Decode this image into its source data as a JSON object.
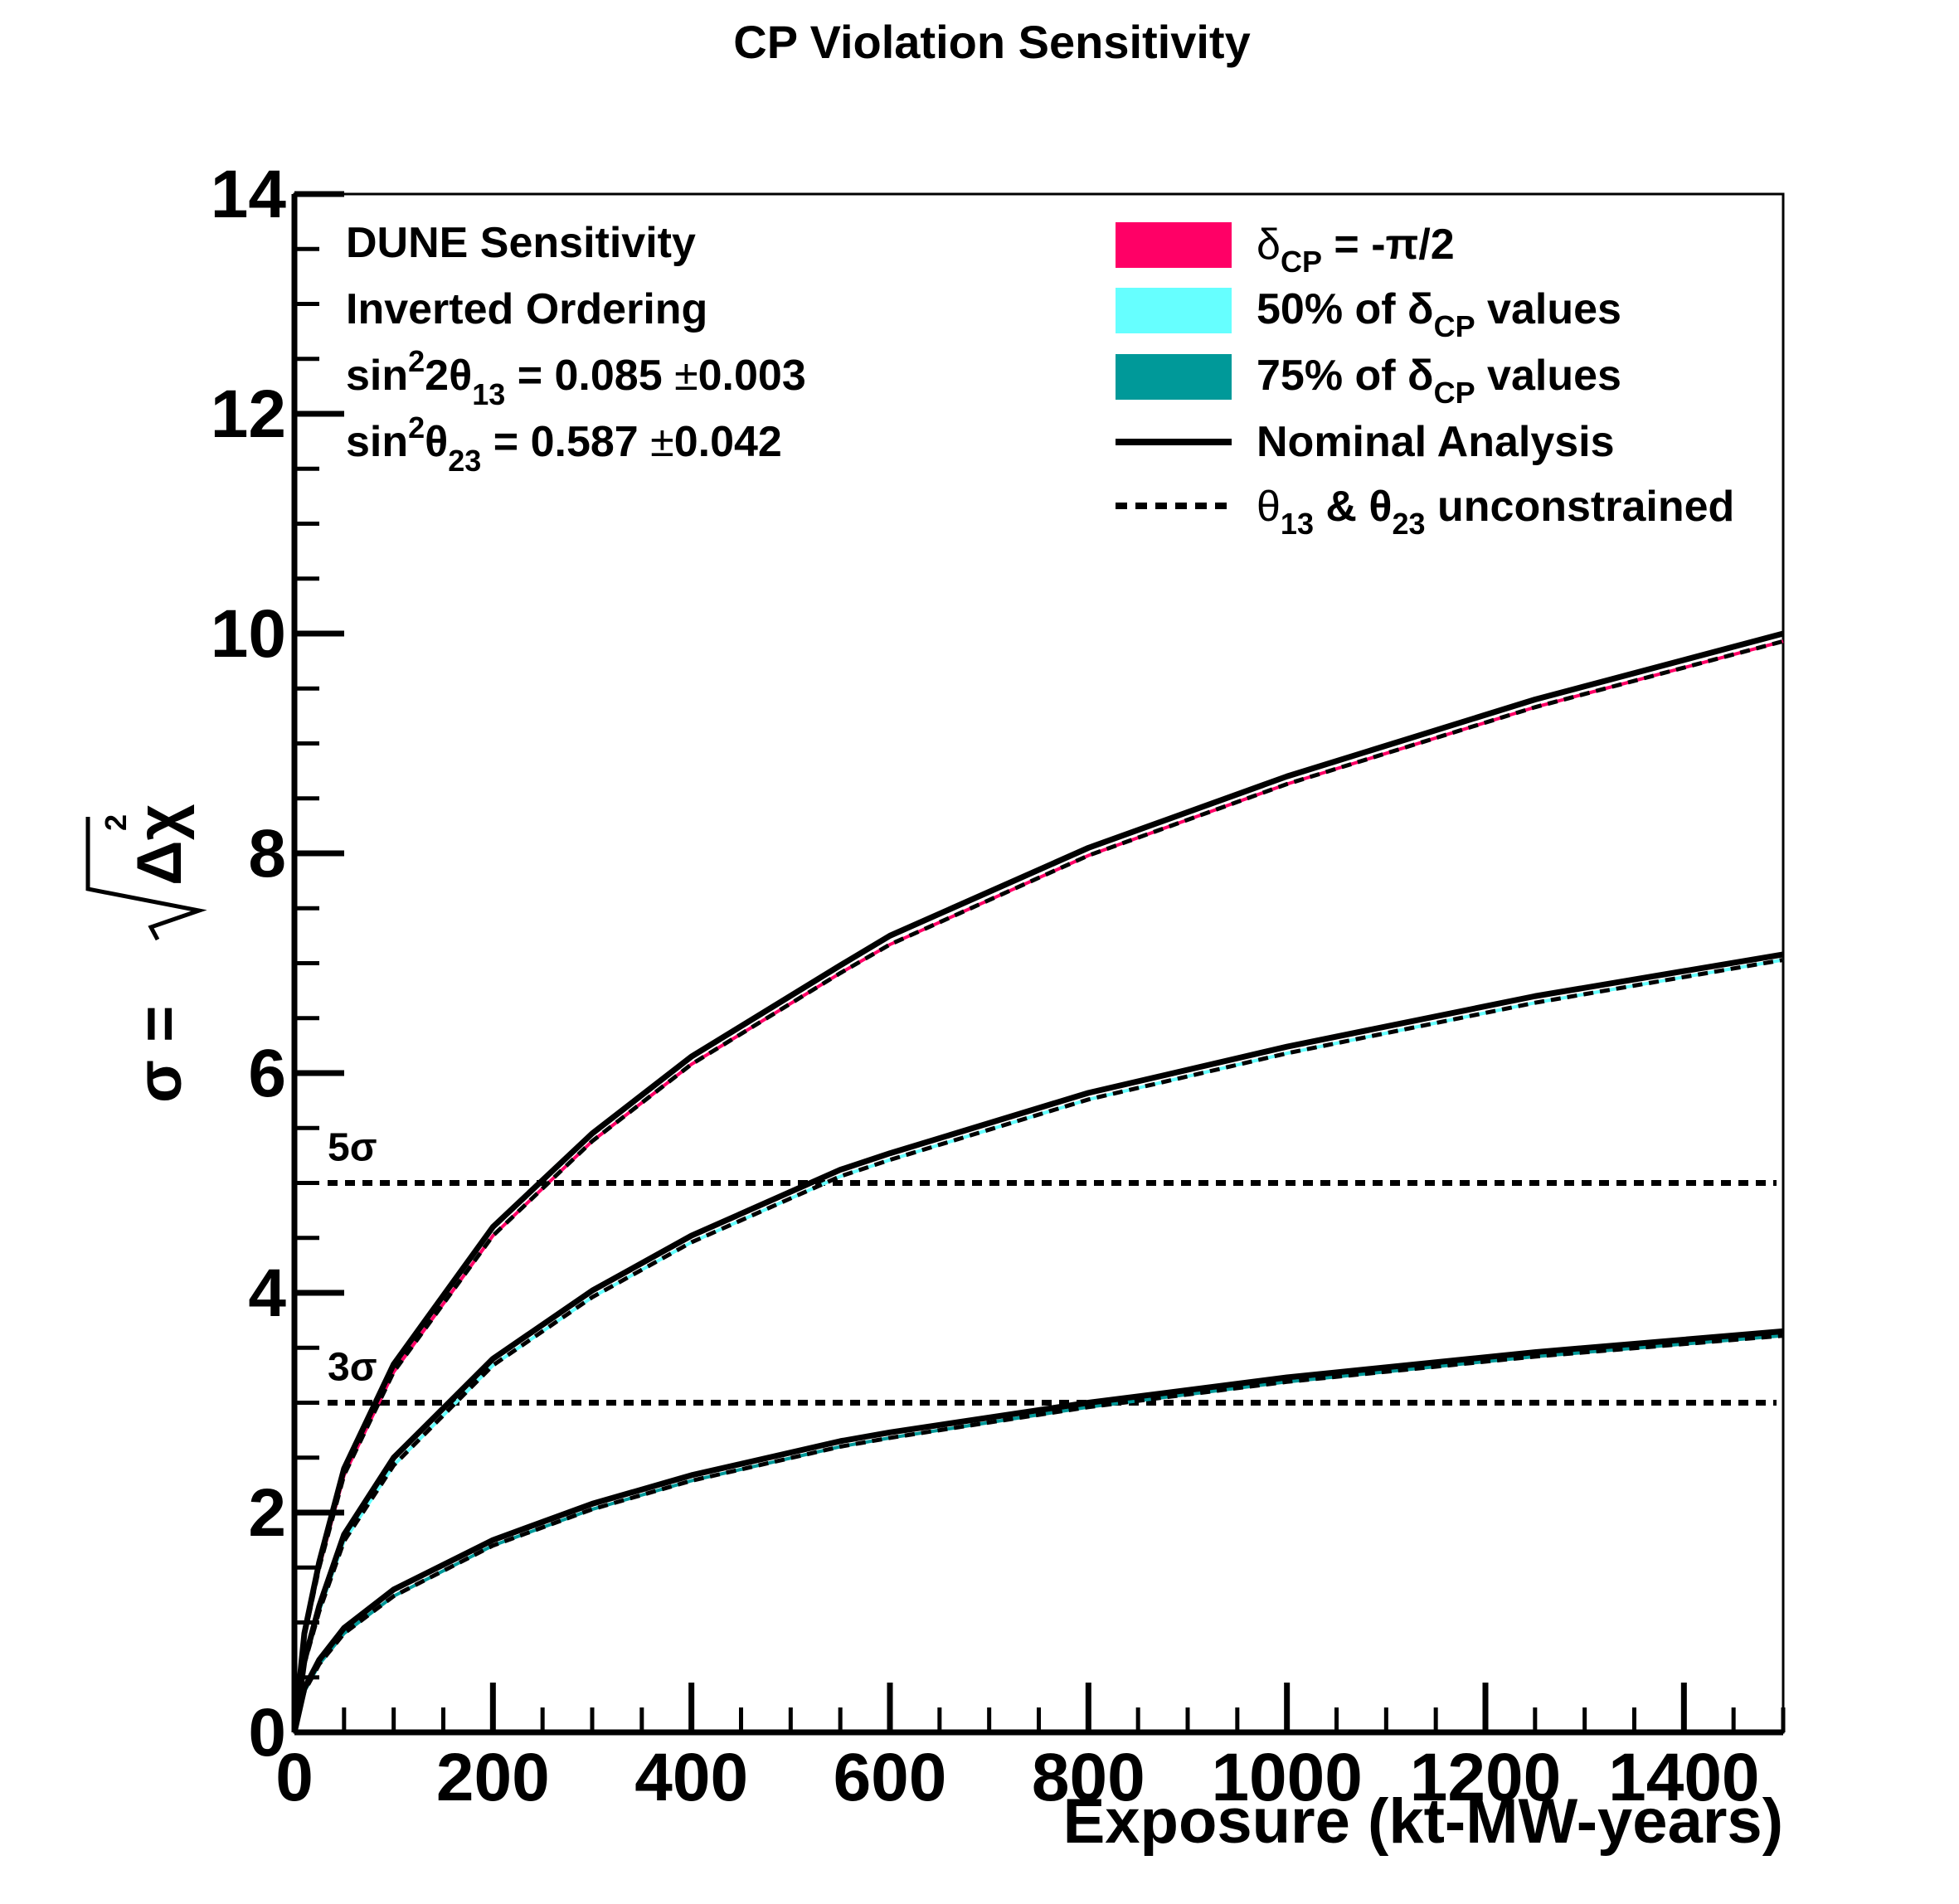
{
  "chart_data": {
    "type": "line",
    "title": "CP Violation Sensitivity",
    "xlabel": "Exposure (kt-MW-years)",
    "ylabel": {
      "prefix": "σ = ",
      "radicand": "Δχ",
      "exponent": "2"
    },
    "xlim": [
      0,
      1500
    ],
    "ylim": [
      0,
      14
    ],
    "x_ticks": [
      "0",
      "200",
      "400",
      "600",
      "800",
      "1000",
      "1200",
      "1400"
    ],
    "y_ticks": [
      "0",
      "2",
      "4",
      "6",
      "8",
      "10",
      "12",
      "14"
    ],
    "info_text": {
      "line1": "DUNE Sensitivity",
      "line2": "Inverted Ordering",
      "line3": {
        "a": "sin",
        "sup": "2",
        "b": "2θ",
        "sub": "13",
        "c": " = 0.085 ",
        "pm": "±",
        "d": "0.003"
      },
      "line4": {
        "a": "sin",
        "sup": "2",
        "b": "θ",
        "sub": "23",
        "c": " = 0.587 ",
        "pm": "±",
        "d": "0.042"
      }
    },
    "legend": [
      {
        "type": "box",
        "color": "#ff0066",
        "a": "δ",
        "sub": "CP",
        "b": " = -π/2"
      },
      {
        "type": "box",
        "color": "#66ffff",
        "a": "50% of  δ",
        "sub": "CP",
        "b": " values"
      },
      {
        "type": "box",
        "color": "#009999",
        "a": "75% of  δ",
        "sub": "CP",
        "b": " values"
      },
      {
        "type": "solid",
        "text": "Nominal Analysis"
      },
      {
        "type": "dashed",
        "a": "θ",
        "sub1": "13",
        "b": " &  θ",
        "sub2": "23",
        "c": " unconstrained"
      }
    ],
    "reference_lines": [
      {
        "label": "5σ",
        "y": 5
      },
      {
        "label": "3σ",
        "y": 3
      }
    ],
    "colors": {
      "delta_cp_minus_pi_2": "#ff0066",
      "fifty_percent": "#66ffff",
      "seventy_five_percent": "#009999",
      "lines": "#000000"
    },
    "series": [
      {
        "band": "δCP = -π/2",
        "x": [
          0,
          10,
          25,
          50,
          100,
          200,
          300,
          400,
          550,
          600,
          800,
          1000,
          1250,
          1500
        ],
        "nominal": [
          0,
          0.9,
          1.55,
          2.4,
          3.35,
          4.6,
          5.45,
          6.15,
          6.98,
          7.25,
          8.05,
          8.7,
          9.4,
          10.0
        ],
        "unconstrained": [
          0,
          0.87,
          1.5,
          2.34,
          3.28,
          4.52,
          5.38,
          6.08,
          6.91,
          7.17,
          7.98,
          8.63,
          9.33,
          9.93
        ]
      },
      {
        "band": "50% of δCP values",
        "x": [
          0,
          10,
          25,
          50,
          100,
          200,
          300,
          400,
          550,
          600,
          800,
          1000,
          1250,
          1500
        ],
        "nominal": [
          0,
          0.65,
          1.15,
          1.8,
          2.5,
          3.4,
          4.02,
          4.52,
          5.12,
          5.27,
          5.82,
          6.24,
          6.7,
          7.08
        ],
        "unconstrained": [
          0,
          0.62,
          1.1,
          1.74,
          2.43,
          3.34,
          3.96,
          4.46,
          5.06,
          5.21,
          5.76,
          6.18,
          6.64,
          7.03
        ]
      },
      {
        "band": "75% of δCP values",
        "x": [
          0,
          10,
          25,
          50,
          100,
          200,
          300,
          400,
          550,
          600,
          800,
          1000,
          1250,
          1500
        ],
        "nominal": [
          0,
          0.4,
          0.66,
          0.95,
          1.3,
          1.75,
          2.08,
          2.34,
          2.65,
          2.73,
          3.0,
          3.23,
          3.46,
          3.65
        ],
        "unconstrained": [
          0,
          0.37,
          0.62,
          0.9,
          1.24,
          1.7,
          2.03,
          2.29,
          2.6,
          2.68,
          2.96,
          3.19,
          3.42,
          3.61
        ]
      }
    ]
  }
}
